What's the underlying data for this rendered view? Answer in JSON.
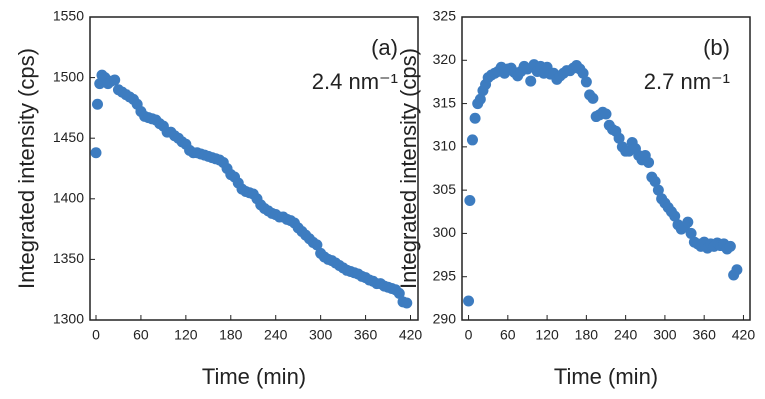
{
  "chart_data": [
    {
      "type": "scatter",
      "label": "(a)",
      "annotation": "2.4 nm⁻¹",
      "xlabel": "Time (min)",
      "ylabel": "Integrated intensity (cps)",
      "color": "#3d7cc0",
      "xlim": [
        -8,
        430
      ],
      "ylim": [
        1300,
        1550
      ],
      "xticks": [
        0,
        60,
        120,
        180,
        240,
        300,
        360,
        420
      ],
      "yticks": [
        1300,
        1350,
        1400,
        1450,
        1500,
        1550
      ],
      "x": [
        0,
        2,
        5,
        8,
        12,
        16,
        20,
        25,
        30,
        35,
        40,
        45,
        50,
        55,
        60,
        65,
        70,
        75,
        80,
        85,
        90,
        95,
        100,
        105,
        110,
        115,
        120,
        125,
        130,
        135,
        140,
        145,
        150,
        155,
        160,
        165,
        170,
        175,
        180,
        185,
        190,
        195,
        200,
        205,
        210,
        215,
        220,
        225,
        230,
        235,
        240,
        245,
        250,
        255,
        260,
        265,
        270,
        275,
        280,
        285,
        290,
        295,
        300,
        305,
        310,
        315,
        320,
        325,
        330,
        335,
        340,
        345,
        350,
        355,
        360,
        365,
        370,
        375,
        380,
        385,
        390,
        395,
        400,
        405,
        410,
        415
      ],
      "values": [
        1438,
        1478,
        1495,
        1502,
        1500,
        1495,
        1497,
        1498,
        1490,
        1488,
        1486,
        1484,
        1482,
        1478,
        1472,
        1468,
        1467,
        1466,
        1465,
        1462,
        1460,
        1455,
        1455,
        1452,
        1450,
        1447,
        1445,
        1440,
        1438,
        1438,
        1437,
        1436,
        1435,
        1434,
        1433,
        1432,
        1430,
        1425,
        1420,
        1418,
        1413,
        1408,
        1406,
        1405,
        1404,
        1400,
        1395,
        1392,
        1390,
        1388,
        1387,
        1385,
        1385,
        1383,
        1382,
        1380,
        1376,
        1373,
        1370,
        1367,
        1364,
        1362,
        1355,
        1352,
        1350,
        1349,
        1347,
        1345,
        1343,
        1341,
        1340,
        1339,
        1338,
        1336,
        1335,
        1333,
        1332,
        1330,
        1330,
        1328,
        1327,
        1326,
        1325,
        1322,
        1315,
        1314
      ]
    },
    {
      "type": "scatter",
      "label": "(b)",
      "annotation": "2.7 nm⁻¹",
      "xlabel": "Time (min)",
      "ylabel": "Integrated intensity (cps)",
      "color": "#3d7cc0",
      "xlim": [
        -10,
        430
      ],
      "ylim": [
        290,
        325
      ],
      "xticks": [
        0,
        60,
        120,
        180,
        240,
        300,
        360,
        420
      ],
      "yticks": [
        290,
        295,
        300,
        305,
        310,
        315,
        320,
        325
      ],
      "x": [
        0,
        2,
        6,
        10,
        14,
        18,
        22,
        26,
        30,
        35,
        40,
        45,
        50,
        55,
        60,
        65,
        70,
        75,
        80,
        85,
        90,
        95,
        100,
        105,
        110,
        115,
        120,
        125,
        130,
        135,
        140,
        145,
        150,
        155,
        160,
        165,
        170,
        175,
        180,
        185,
        190,
        195,
        200,
        205,
        210,
        215,
        220,
        225,
        230,
        235,
        240,
        245,
        250,
        255,
        260,
        265,
        270,
        275,
        280,
        285,
        290,
        295,
        300,
        305,
        310,
        315,
        320,
        325,
        330,
        335,
        340,
        345,
        350,
        355,
        360,
        365,
        370,
        375,
        380,
        385,
        390,
        395,
        400,
        405,
        410
      ],
      "values": [
        292.2,
        303.8,
        310.8,
        313.3,
        315,
        315.5,
        316.5,
        317.2,
        318,
        318.3,
        318.5,
        318.7,
        319.2,
        318.5,
        319,
        319.1,
        318.6,
        318.2,
        318.7,
        319.3,
        319,
        317.6,
        319.5,
        318.7,
        319.3,
        318.5,
        319.2,
        318.4,
        318.5,
        317.8,
        318.2,
        318.5,
        318.8,
        318.8,
        319.1,
        319.4,
        319,
        318.5,
        317.5,
        316,
        315.6,
        313.5,
        313.7,
        314,
        313.8,
        312.5,
        312,
        311.8,
        311,
        310,
        309.5,
        309.5,
        310.5,
        309.8,
        309,
        308.5,
        309,
        308.2,
        306.5,
        306,
        305,
        304,
        303.5,
        303,
        302.5,
        302,
        301,
        300.5,
        300.8,
        301.3,
        300,
        299,
        298.8,
        298.5,
        299,
        298.3,
        298.8,
        298.5,
        298.9,
        298.6,
        298.8,
        298.2,
        298.5,
        295.2,
        295.8
      ]
    }
  ]
}
